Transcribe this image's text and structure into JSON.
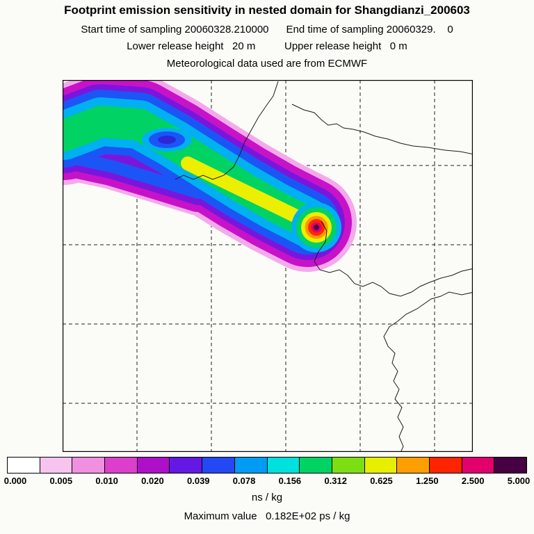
{
  "header": {
    "title": "Footprint emission sensitivity in nested domain for Shangdianzi_200603",
    "sampling_line": "Start time of sampling 20060328.210000      End time of sampling 20060329.    0",
    "release_line": "Lower release height   20 m          Upper release height   0 m",
    "met_line": "Meteorological data used are from ECMWF"
  },
  "colorbar": {
    "segments": [
      "#ffffff",
      "#f6c4ee",
      "#f090e0",
      "#dd3ecc",
      "#ad10c8",
      "#6318e4",
      "#2448f4",
      "#009cf4",
      "#00e0dc",
      "#00d263",
      "#7ede14",
      "#e8ee00",
      "#ff9e00",
      "#ff2400",
      "#e2006c",
      "#470041"
    ],
    "labels": [
      "0.000",
      "0.005",
      "0.010",
      "0.020",
      "0.039",
      "0.078",
      "0.156",
      "0.312",
      "0.625",
      "1.250",
      "2.500",
      "5.000"
    ],
    "units_label": "ns / kg"
  },
  "footer": {
    "max_value_label": "Maximum value   0.182E+02 ps / kg"
  },
  "chart_data": {
    "type": "heatmap",
    "title": "Footprint emission sensitivity in nested domain for Shangdianzi_200603",
    "station": "Shangdianzi_200603",
    "sampling_start": "20060328.210000",
    "sampling_end": "20060329.0",
    "lower_release_height": "20 m",
    "upper_release_height": "0 m",
    "meteorological_data": "ECMWF",
    "units": "ns / kg",
    "maximum_value": "0.182E+02 ps / kg",
    "contour_levels_ns_per_kg": [
      0.0,
      0.005,
      0.01,
      0.02,
      0.039,
      0.078,
      0.156,
      0.312,
      0.625,
      1.25,
      2.5,
      5.0
    ],
    "palette": [
      "#ffffff",
      "#f6c4ee",
      "#f090e0",
      "#dd3ecc",
      "#ad10c8",
      "#6318e4",
      "#2448f4",
      "#009cf4",
      "#00e0dc",
      "#00d263",
      "#7ede14",
      "#e8ee00",
      "#ff9e00",
      "#ff2400",
      "#e2006c",
      "#470041"
    ],
    "description": "Emission sensitivity plume extends from the receptor maximum (dark core, right-center of map near the coastline) toward the northwest corner of the nested domain; sensitivity decreases outward from >5 ns/kg at the core through red, orange, yellow, green, cyan, blue, purple to a magenta/pink fringe below 0.005 ns/kg.",
    "grid": {
      "vertical_gridlines": 5,
      "horizontal_gridlines": 4,
      "style": "dashed"
    },
    "map_features": [
      "coastline of Bohai Sea and Shandong peninsula",
      "inland border crossing plume",
      "southern coastline to bottom edge"
    ]
  }
}
